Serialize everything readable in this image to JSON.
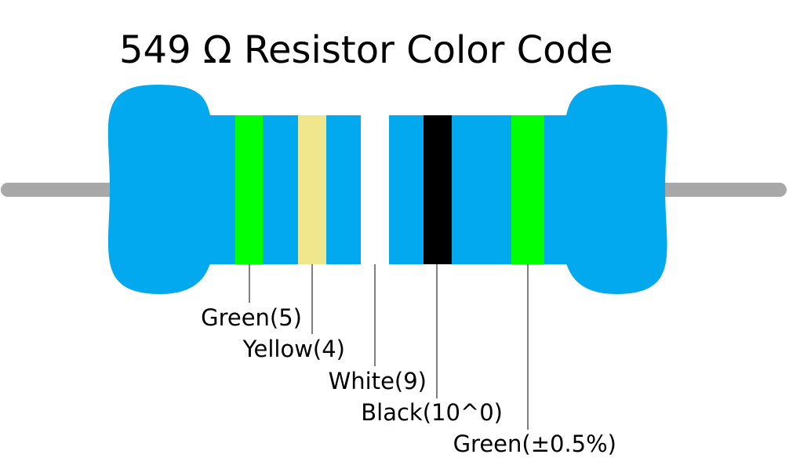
{
  "title": "549 Ω Resistor Color Code",
  "bands": [
    {
      "label": "Green(5)"
    },
    {
      "label": "Yellow(4)"
    },
    {
      "label": "White(9)"
    },
    {
      "label": "Black(10^0)"
    },
    {
      "label": "Green(±0.5%)"
    }
  ]
}
